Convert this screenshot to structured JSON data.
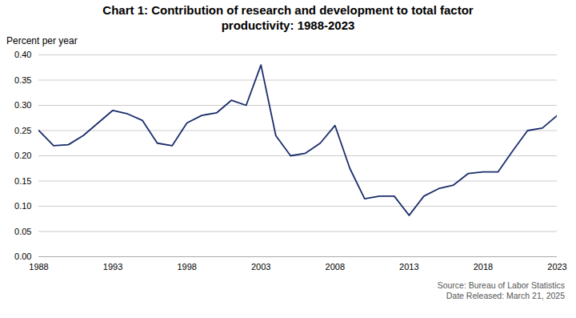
{
  "chart_data": {
    "type": "line",
    "title": "Chart 1: Contribution of research and development to total factor\nproductivity: 1988-2023",
    "ylabel": "Percent per year",
    "annotations": [
      "Source: Bureau of Labor Statistics\nDate Released: March 21, 2025"
    ],
    "x": [
      1988,
      1989,
      1990,
      1991,
      1992,
      1993,
      1994,
      1995,
      1996,
      1997,
      1998,
      1999,
      2000,
      2001,
      2002,
      2003,
      2004,
      2005,
      2006,
      2007,
      2008,
      2009,
      2010,
      2011,
      2012,
      2013,
      2014,
      2015,
      2016,
      2017,
      2018,
      2019,
      2020,
      2021,
      2022,
      2023
    ],
    "values": [
      0.25,
      0.22,
      0.222,
      0.24,
      0.265,
      0.29,
      0.283,
      0.27,
      0.225,
      0.22,
      0.265,
      0.28,
      0.285,
      0.31,
      0.3,
      0.38,
      0.24,
      0.2,
      0.205,
      0.225,
      0.26,
      0.175,
      0.115,
      0.12,
      0.12,
      0.082,
      0.12,
      0.135,
      0.142,
      0.165,
      0.168,
      0.168,
      0.21,
      0.25,
      0.255,
      0.28
    ],
    "color": "#1a2d6b",
    "xlim": [
      1988,
      2023
    ],
    "xticks": [
      1988,
      1993,
      1998,
      2003,
      2008,
      2013,
      2018,
      2023
    ],
    "ylim": [
      0.0,
      0.4
    ],
    "yticks": [
      {
        "value": 0.0,
        "label": "0.00"
      },
      0.05,
      {
        "value": 0.1,
        "label": "0.10"
      },
      0.15,
      {
        "value": 0.2,
        "label": "0.20"
      },
      0.25,
      {
        "value": 0.3,
        "label": "0.30"
      },
      0.35,
      {
        "value": 0.4,
        "label": "0.40"
      }
    ],
    "grid": "y"
  }
}
